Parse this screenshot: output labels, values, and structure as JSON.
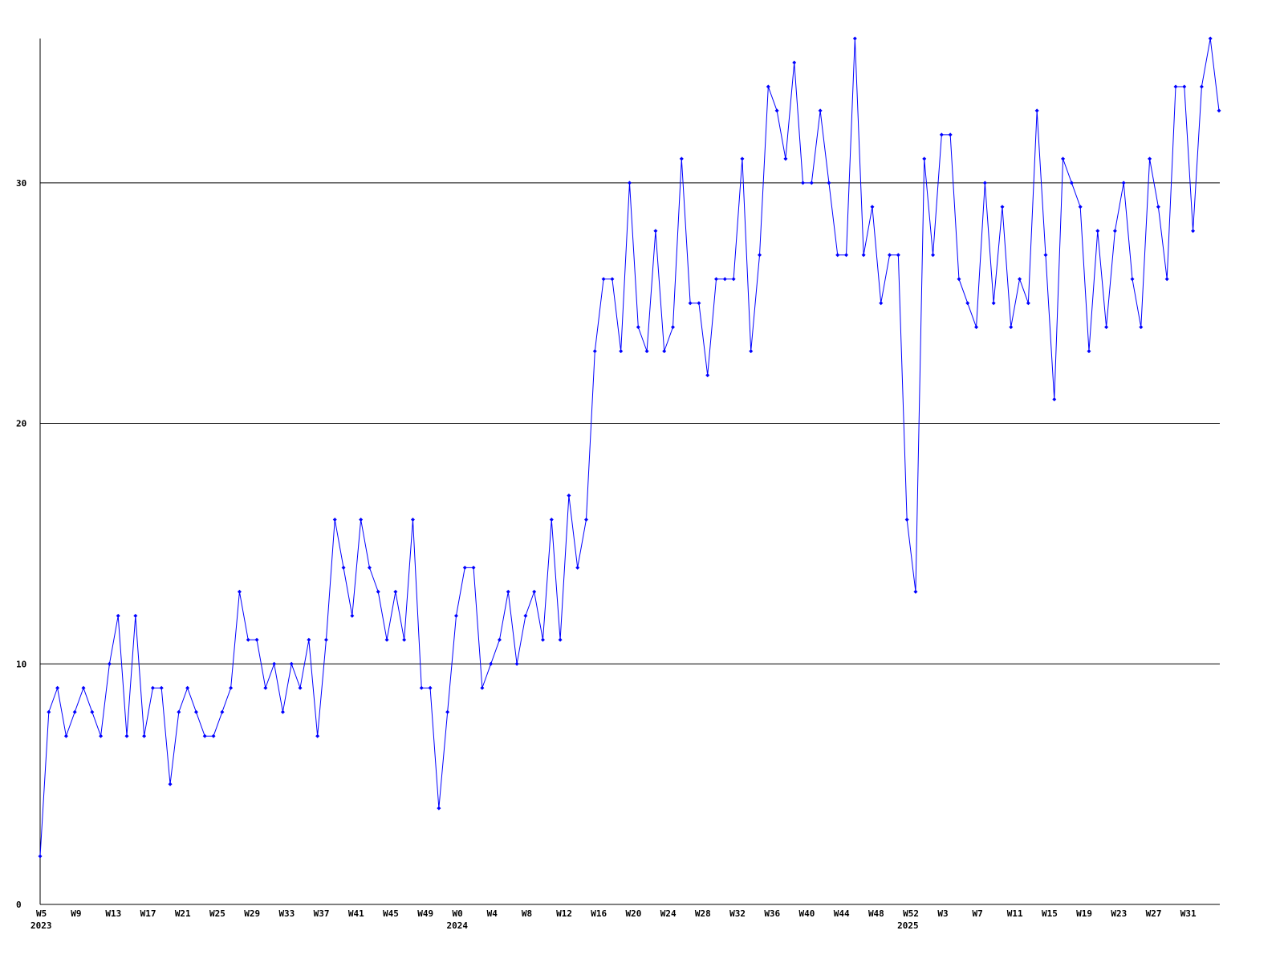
{
  "chart_data": {
    "type": "line",
    "categories": [
      "W5",
      null,
      null,
      null,
      "W9",
      null,
      null,
      null,
      "W13",
      null,
      null,
      null,
      "W17",
      null,
      null,
      null,
      "W21",
      null,
      null,
      null,
      "W25",
      null,
      null,
      null,
      "W29",
      null,
      null,
      null,
      "W33",
      null,
      null,
      null,
      "W37",
      null,
      null,
      null,
      "W41",
      null,
      null,
      null,
      "W45",
      null,
      null,
      null,
      "W49",
      null,
      null,
      null,
      "W0",
      null,
      null,
      null,
      "W4",
      null,
      null,
      null,
      "W8",
      null,
      null,
      null,
      "W12",
      null,
      null,
      null,
      "W16",
      null,
      null,
      null,
      "W20",
      null,
      null,
      null,
      "W24",
      null,
      null,
      null,
      "W28",
      null,
      null,
      null,
      "W32",
      null,
      null,
      null,
      "W36",
      null,
      null,
      null,
      "W40",
      null,
      null,
      null,
      "W44",
      null,
      null,
      null,
      "W48",
      null,
      null,
      null,
      "W52",
      null,
      null,
      null,
      "W3",
      null,
      null,
      null,
      "W7",
      null,
      null,
      null,
      "W11",
      null,
      null,
      null,
      "W15",
      null,
      null,
      null,
      "W19",
      null,
      null,
      null,
      "W23",
      null,
      null,
      null,
      "W27",
      null,
      null,
      null,
      "W31",
      null,
      null,
      null,
      null
    ],
    "year_labels": [
      {
        "index": 0,
        "label": "2023"
      },
      {
        "index": 48,
        "label": "2024"
      },
      {
        "index": 100,
        "label": "2025"
      }
    ],
    "series": [
      {
        "color": "#0000ff",
        "values": [
          2,
          8,
          9,
          7,
          8,
          9,
          8,
          7,
          10,
          12,
          7,
          12,
          7,
          9,
          9,
          5,
          8,
          9,
          8,
          7,
          7,
          8,
          9,
          13,
          11,
          11,
          9,
          10,
          8,
          10,
          9,
          11,
          7,
          11,
          16,
          14,
          12,
          16,
          14,
          13,
          11,
          13,
          11,
          16,
          9,
          9,
          4,
          8,
          12,
          14,
          14,
          9,
          10,
          11,
          13,
          10,
          12,
          13,
          11,
          16,
          11,
          17,
          14,
          16,
          23,
          26,
          26,
          23,
          30,
          24,
          23,
          28,
          23,
          24,
          31,
          25,
          25,
          22,
          26,
          26,
          26,
          31,
          23,
          27,
          34,
          33,
          31,
          35,
          30,
          30,
          33,
          30,
          27,
          27,
          36,
          27,
          29,
          25,
          27,
          27,
          16,
          13,
          31,
          27,
          32,
          32,
          26,
          25,
          24,
          30,
          25,
          29,
          24,
          26,
          25,
          33,
          27,
          21,
          31,
          30,
          29,
          23,
          28,
          24,
          28,
          30,
          26,
          24,
          31,
          29,
          26,
          34,
          34,
          28,
          34,
          36,
          33
        ]
      }
    ],
    "ylim": [
      0,
      36
    ],
    "yticks": [
      0,
      10,
      20,
      30
    ],
    "grid": true
  }
}
